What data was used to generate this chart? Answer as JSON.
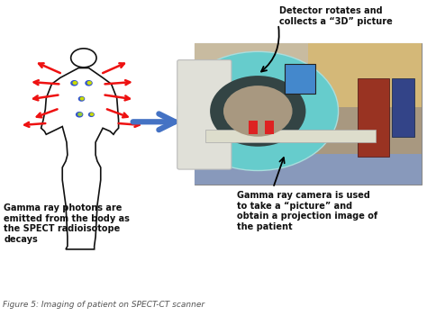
{
  "bg_color": "#ffffff",
  "title_text": "Figure 5: Imaging of patient on SPECT-CT scanner",
  "top_annotation": "Detector rotates and\ncollects a “3D” picture",
  "left_annotation": "Gamma ray photons are\nemitted from the body as\nthe SPECT radioisotope\ndecays",
  "right_annotation": "Gamma ray camera is used\nto take a “picture” and\nobtain a projection image of\nthe patient",
  "arrow_color": "#4472c4",
  "ray_color": "#ee1111",
  "text_color": "#111111",
  "caption_color": "#555555",
  "annotation_fontsize": 7.0,
  "title_fontsize": 6.5,
  "body_color": "#111111",
  "body_linewidth": 1.2,
  "photo_bg": "#a89880",
  "photo_ceiling": "#c8bba8",
  "photo_floor": "#7788aa",
  "scanner_teal": "#66cccc",
  "scanner_white": "#e8e8e0",
  "scanner_dark": "#555555",
  "screen_blue": "#4488cc",
  "cabinet_red": "#993322",
  "cabinet_blue": "#334488"
}
